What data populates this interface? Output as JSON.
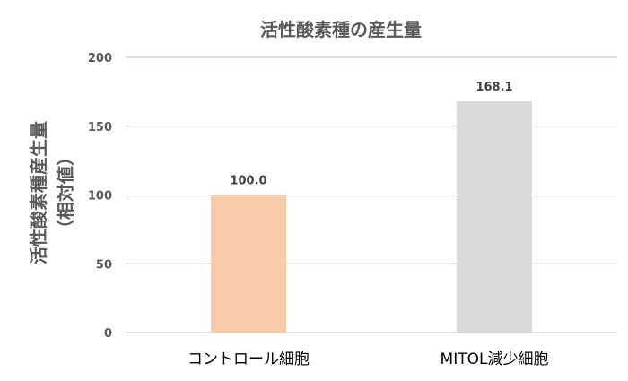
{
  "chart_data": {
    "type": "bar",
    "title": "活性酸素種の産生量",
    "ylabel_line1": "活性酸素種産生量",
    "ylabel_line2": "（相対値）",
    "categories": [
      "コントロール細胞",
      "MITOL減少細胞"
    ],
    "values": [
      100.0,
      168.1
    ],
    "data_labels": [
      "100.0",
      "168.1"
    ],
    "ylim": [
      0,
      200
    ],
    "yticks": [
      0,
      50,
      100,
      150,
      200
    ],
    "grid": true,
    "legend": "none",
    "bar_colors": [
      "#f8cbad",
      "#d9d9d9"
    ]
  }
}
